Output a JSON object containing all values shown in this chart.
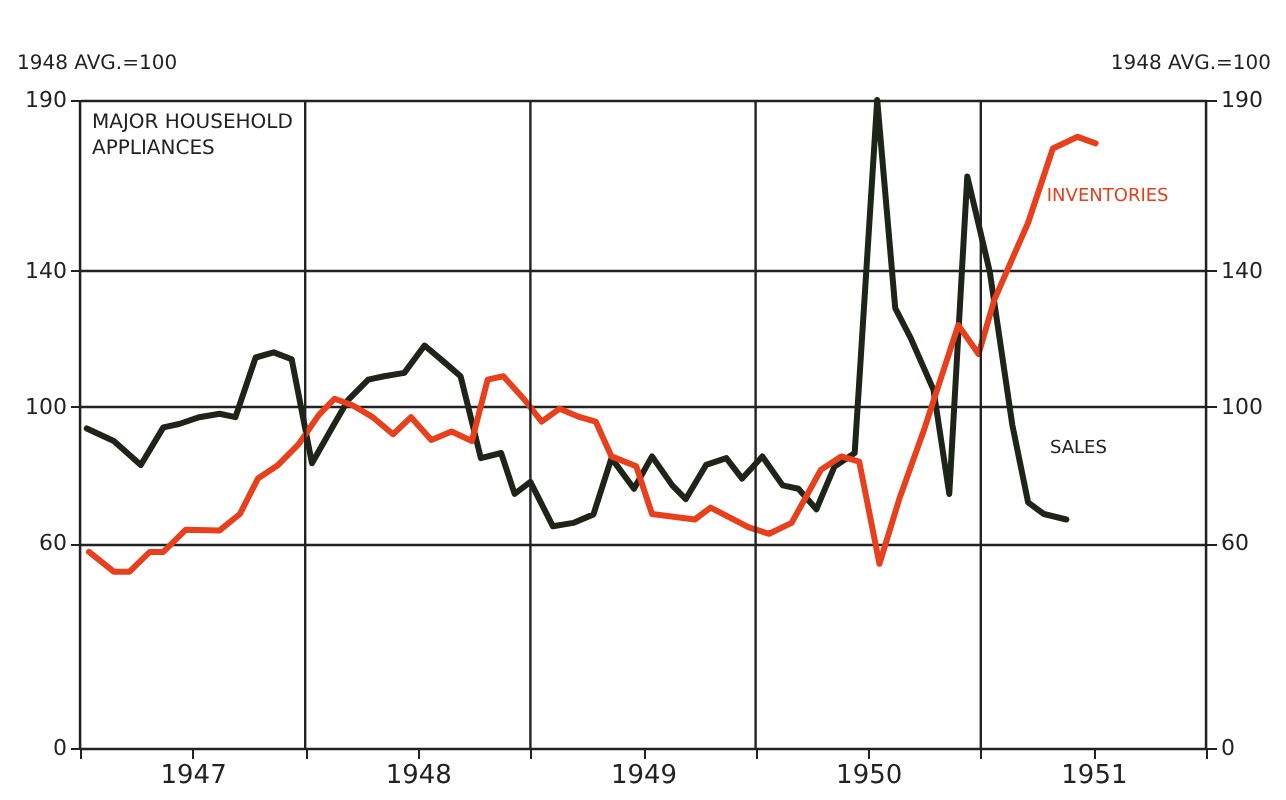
{
  "chart_data": {
    "type": "line",
    "title": "MAJOR HOUSEHOLD APPLIANCES",
    "ylabel": "1948 AVG.=100",
    "y2label": "1948 AVG.=100",
    "xlim": [
      1947,
      1952
    ],
    "xticks": [
      {
        "value": 1947,
        "label": null
      },
      {
        "value": 1947.5,
        "label": "1947"
      },
      {
        "value": 1948,
        "label": null
      },
      {
        "value": 1948.5,
        "label": "1948"
      },
      {
        "value": 1949,
        "label": null
      },
      {
        "value": 1949.5,
        "label": "1949"
      },
      {
        "value": 1950,
        "label": null
      },
      {
        "value": 1950.5,
        "label": "1950"
      },
      {
        "value": 1951,
        "label": null
      },
      {
        "value": 1951.5,
        "label": "1951"
      },
      {
        "value": 1952,
        "label": null
      }
    ],
    "ylim": [
      0,
      190
    ],
    "yticks": [
      0,
      60,
      100,
      140,
      190
    ],
    "y2lim": [
      0,
      190
    ],
    "y2ticks": [
      0,
      60,
      100,
      140,
      190
    ],
    "grid": true,
    "legend": false,
    "line_style": "solid",
    "marker": "none",
    "series": [
      {
        "name": "SALES",
        "color": "#1e2418",
        "x": [
          1947.03,
          1947.15,
          1947.27,
          1947.37,
          1947.44,
          1947.53,
          1947.62,
          1947.69,
          1947.78,
          1947.86,
          1947.94,
          1948.03,
          1948.12,
          1948.19,
          1948.28,
          1948.35,
          1948.44,
          1948.53,
          1948.62,
          1948.69,
          1948.78,
          1948.87,
          1948.93,
          1949.0,
          1949.1,
          1949.19,
          1949.28,
          1949.36,
          1949.46,
          1949.54,
          1949.63,
          1949.69,
          1949.78,
          1949.87,
          1949.94,
          1950.03,
          1950.12,
          1950.19,
          1950.27,
          1950.35,
          1950.44,
          1950.54,
          1950.62,
          1950.69,
          1950.79,
          1950.86,
          1950.94,
          1951.04,
          1951.14,
          1951.21,
          1951.28,
          1951.38
        ],
        "values": [
          93.7,
          90,
          83,
          94,
          95,
          97,
          98,
          97,
          114.5,
          116,
          114,
          83.5,
          94,
          102,
          108,
          109,
          110,
          118,
          113,
          109,
          85,
          86.5,
          74.5,
          78,
          65,
          66,
          68.5,
          85,
          76,
          85.5,
          77,
          73,
          83,
          85,
          79,
          85.5,
          77,
          76,
          70,
          82.5,
          86.5,
          190,
          129,
          120,
          105,
          74.5,
          167.6,
          139.6,
          94.7,
          72,
          68.6,
          67
        ]
      },
      {
        "name": "INVENTORIES",
        "color": "#e8401c",
        "x": [
          1947.04,
          1947.15,
          1947.22,
          1947.31,
          1947.37,
          1947.47,
          1947.62,
          1947.71,
          1947.79,
          1947.88,
          1947.97,
          1948.06,
          1948.13,
          1948.21,
          1948.3,
          1948.39,
          1948.47,
          1948.56,
          1948.65,
          1948.74,
          1948.81,
          1948.88,
          1948.97,
          1949.05,
          1949.13,
          1949.22,
          1949.29,
          1949.36,
          1949.47,
          1949.54,
          1949.73,
          1949.8,
          1949.97,
          1950.06,
          1950.16,
          1950.29,
          1950.38,
          1950.46,
          1950.55,
          1950.64,
          1950.75,
          1950.9,
          1950.99,
          1951.06,
          1951.21,
          1951.32,
          1951.43,
          1951.51
        ],
        "values": [
          57.5,
          51.7,
          51.7,
          57.5,
          57.5,
          64,
          63.8,
          68.6,
          79,
          83,
          89,
          97.6,
          102.4,
          100.5,
          97,
          92,
          97,
          90.3,
          92.8,
          90,
          108,
          109,
          102.4,
          95.7,
          99.5,
          97,
          95.7,
          85.5,
          82.6,
          68.6,
          67,
          70.5,
          64.7,
          62.8,
          66,
          81.6,
          85.5,
          84,
          54,
          73.4,
          93.7,
          124,
          115.5,
          131.4,
          154,
          175.8,
          179.2,
          177.3
        ]
      }
    ]
  }
}
